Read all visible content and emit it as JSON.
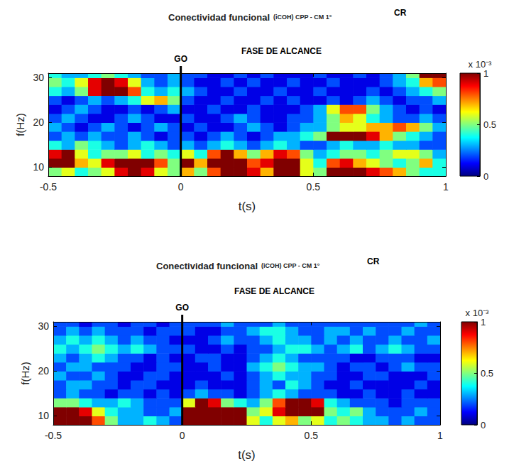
{
  "chart_data": [
    {
      "type": "heatmap",
      "title": "Conectividad funcional",
      "subtitle": "(iCOH) CPP - CM 1°",
      "annotations": [
        {
          "text": "GO",
          "x": 0
        },
        {
          "text": "FASE DE ALCANCE"
        },
        {
          "text": "CR"
        }
      ],
      "xlabel": "t(s)",
      "ylabel": "f(Hz)",
      "xlim": [
        -0.5,
        1
      ],
      "xticks": [
        -0.5,
        0,
        0.5,
        1
      ],
      "ylim": [
        8,
        31
      ],
      "yticks": [
        10,
        20,
        30
      ],
      "x_edges": [
        -0.5,
        -0.45,
        -0.4,
        -0.35,
        -0.3,
        -0.25,
        -0.2,
        -0.15,
        -0.1,
        -0.05,
        0,
        0.05,
        0.1,
        0.15,
        0.2,
        0.25,
        0.3,
        0.35,
        0.4,
        0.45,
        0.5,
        0.55,
        0.6,
        0.65,
        0.7,
        0.75,
        0.8,
        0.85,
        0.9,
        0.95,
        1.0
      ],
      "y_edges": [
        8,
        10,
        12,
        14,
        16,
        18,
        20,
        22,
        24,
        26,
        28,
        30,
        32
      ],
      "values": [
        [
          0.5,
          0.6,
          0.4,
          0.5,
          0.6,
          0.9,
          1,
          0.9,
          0.6,
          0.5,
          0.7,
          0.5,
          0.8,
          1,
          1,
          0.9,
          0.7,
          1,
          1,
          0.6,
          0.5,
          1,
          1,
          1,
          0.9,
          0.8,
          0.7,
          0.5,
          0.4,
          0.4
        ],
        [
          1,
          1,
          0.7,
          0.6,
          0.9,
          1,
          1,
          1,
          0.8,
          0.5,
          1,
          0.7,
          1,
          1,
          1,
          0.8,
          0.9,
          1,
          1,
          0.6,
          0.4,
          0.8,
          0.9,
          0.7,
          0.6,
          0.5,
          0.4,
          0.5,
          0.7,
          0.4
        ],
        [
          0.9,
          1,
          0.6,
          0.4,
          0.5,
          0.5,
          0.6,
          0.4,
          0.5,
          0.4,
          0.6,
          0.4,
          0.8,
          1,
          0.7,
          0.5,
          0.7,
          0.9,
          0.8,
          0.5,
          0.3,
          0.4,
          0.5,
          0.5,
          0.4,
          0.5,
          0.6,
          0.6,
          0.5,
          0.3
        ],
        [
          0.4,
          0.3,
          0.5,
          0.4,
          0.3,
          0.2,
          0.3,
          0.4,
          0.3,
          0.2,
          0.3,
          0.2,
          0.3,
          0.4,
          0.3,
          0.2,
          0.3,
          0.4,
          0.3,
          0.2,
          0.2,
          0.3,
          0.4,
          0.3,
          0.3,
          0.4,
          0.3,
          0.3,
          0.2,
          0.2
        ],
        [
          0.2,
          0.3,
          0.2,
          0.3,
          0.2,
          0.2,
          0.3,
          0.2,
          0.1,
          0.2,
          0.2,
          0.1,
          0.2,
          0.3,
          0.2,
          0.1,
          0.2,
          0.3,
          0.3,
          0.4,
          0.5,
          1,
          1,
          1,
          0.9,
          0.7,
          0.5,
          0.4,
          0.3,
          0.2
        ],
        [
          0.3,
          0.2,
          0.1,
          0.2,
          0.3,
          0.2,
          0.1,
          0.2,
          0.3,
          0.2,
          0.1,
          0.2,
          0.1,
          0.1,
          0.2,
          0.3,
          0.2,
          0.1,
          0.2,
          0.3,
          0.3,
          0.5,
          0.6,
          0.6,
          0.7,
          0.7,
          0.8,
          0.7,
          0.5,
          0.3
        ],
        [
          0.2,
          0.3,
          0.2,
          0.1,
          0.1,
          0.2,
          0.3,
          0.2,
          0.1,
          0.1,
          0.2,
          0.1,
          0.1,
          0.2,
          0.3,
          0.2,
          0.1,
          0.1,
          0.2,
          0.2,
          0.3,
          0.5,
          0.7,
          0.6,
          0.4,
          0.3,
          0.2,
          0.2,
          0.3,
          0.2
        ],
        [
          0.1,
          0.2,
          0.3,
          0.2,
          0.1,
          0.1,
          0.2,
          0.1,
          0.2,
          0.3,
          0.1,
          0.1,
          0.2,
          0.1,
          0.1,
          0.2,
          0.1,
          0.1,
          0.1,
          0.2,
          0.3,
          0.6,
          0.8,
          0.8,
          0.5,
          0.3,
          0.2,
          0.1,
          0.2,
          0.1
        ],
        [
          0.2,
          0.1,
          0.2,
          0.3,
          0.2,
          0.3,
          0.4,
          0.6,
          0.7,
          0.5,
          0.2,
          0.1,
          0.1,
          0.2,
          0.1,
          0.1,
          0.2,
          0.1,
          0.2,
          0.1,
          0.1,
          0.2,
          0.1,
          0.2,
          0.3,
          0.2,
          0.1,
          0.2,
          0.2,
          0.3
        ],
        [
          0.4,
          0.3,
          0.5,
          0.9,
          1,
          1,
          0.8,
          0.4,
          0.3,
          0.4,
          0.3,
          0.2,
          0.1,
          0.1,
          0.2,
          0.1,
          0.1,
          0.2,
          0.1,
          0.1,
          0.2,
          0.1,
          0.1,
          0.1,
          0.2,
          0.1,
          0.2,
          0.3,
          0.4,
          0.5
        ],
        [
          0.5,
          0.4,
          0.6,
          0.9,
          1,
          0.9,
          0.6,
          0.3,
          0.2,
          0.3,
          0.2,
          0.1,
          0.1,
          0.2,
          0.1,
          0.2,
          0.1,
          0.1,
          0.2,
          0.1,
          0.1,
          0.2,
          0.1,
          0.1,
          0.1,
          0.2,
          0.3,
          0.4,
          0.7,
          0.8
        ],
        [
          0.4,
          0.3,
          0.3,
          0.4,
          0.5,
          0.4,
          0.3,
          0.2,
          0.2,
          0.3,
          0.2,
          0.2,
          0.1,
          0.1,
          0.2,
          0.1,
          0.2,
          0.1,
          0.1,
          0.1,
          0.2,
          0.1,
          0.1,
          0.2,
          0.1,
          0.2,
          0.3,
          0.5,
          1,
          1
        ]
      ],
      "colorbar": {
        "range": [
          0,
          1
        ],
        "ticks": [
          0,
          0.5,
          1
        ],
        "label": "x 10⁻³"
      }
    },
    {
      "type": "heatmap",
      "title": "Conectividad funcional",
      "subtitle": "(iCOH) CPP - CM 1°",
      "annotations": [
        {
          "text": "GO",
          "x": 0
        },
        {
          "text": "FASE DE ALCANCE"
        },
        {
          "text": "CR"
        }
      ],
      "xlabel": "t(s)",
      "ylabel": "f(Hz)",
      "xlim": [
        -0.5,
        1
      ],
      "xticks": [
        -0.5,
        0,
        0.5,
        1
      ],
      "ylim": [
        8,
        31
      ],
      "yticks": [
        10,
        20,
        30
      ],
      "x_edges": [
        -0.5,
        -0.45,
        -0.4,
        -0.35,
        -0.3,
        -0.25,
        -0.2,
        -0.15,
        -0.1,
        -0.05,
        0,
        0.05,
        0.1,
        0.15,
        0.2,
        0.25,
        0.3,
        0.35,
        0.4,
        0.45,
        0.5,
        0.55,
        0.6,
        0.65,
        0.7,
        0.75,
        0.8,
        0.85,
        0.9,
        0.95,
        1.0
      ],
      "y_edges": [
        8,
        10,
        12,
        14,
        16,
        18,
        20,
        22,
        24,
        26,
        28,
        30,
        32
      ],
      "values": [
        [
          1,
          1,
          1,
          0.8,
          0.5,
          0.3,
          0.3,
          0.4,
          0.3,
          0.2,
          1,
          1,
          1,
          1,
          1,
          0.6,
          0.4,
          0.6,
          0.7,
          0.5,
          0.6,
          0.4,
          0.5,
          0.4,
          0.3,
          0.3,
          0.2,
          0.3,
          0.2,
          0.2
        ],
        [
          1,
          1,
          0.9,
          0.6,
          0.4,
          0.3,
          0.3,
          0.2,
          0.2,
          0.3,
          1,
          1,
          1,
          1,
          1,
          0.5,
          0.6,
          0.9,
          1,
          1,
          1,
          0.5,
          0.4,
          0.5,
          0.3,
          0.2,
          0.2,
          0.2,
          0.3,
          0.2
        ],
        [
          0.5,
          0.5,
          0.4,
          0.3,
          0.3,
          0.4,
          0.3,
          0.2,
          0.2,
          0.2,
          0.6,
          1,
          0.9,
          0.5,
          0.4,
          0.3,
          0.5,
          0.8,
          1,
          1,
          0.9,
          0.4,
          0.3,
          0.2,
          0.2,
          0.2,
          0.1,
          0.2,
          0.2,
          0.2
        ],
        [
          0.2,
          0.3,
          0.2,
          0.2,
          0.1,
          0.2,
          0.2,
          0.1,
          0.2,
          0.1,
          0.2,
          0.3,
          0.2,
          0.2,
          0.1,
          0.2,
          0.3,
          0.4,
          0.3,
          0.2,
          0.2,
          0.2,
          0.1,
          0.1,
          0.2,
          0.1,
          0.1,
          0.2,
          0.1,
          0.1
        ],
        [
          0.2,
          0.3,
          0.3,
          0.2,
          0.2,
          0.1,
          0.2,
          0.2,
          0.1,
          0.1,
          0.1,
          0.2,
          0.1,
          0.1,
          0.1,
          0.2,
          0.3,
          0.2,
          0.4,
          0.3,
          0.2,
          0.1,
          0.1,
          0.2,
          0.1,
          0.1,
          0.1,
          0.1,
          0.2,
          0.1
        ],
        [
          0.3,
          0.2,
          0.2,
          0.3,
          0.2,
          0.1,
          0.1,
          0.2,
          0.2,
          0.1,
          0.1,
          0.1,
          0.1,
          0.2,
          0.1,
          0.2,
          0.3,
          0.4,
          0.3,
          0.3,
          0.2,
          0.2,
          0.1,
          0.1,
          0.2,
          0.2,
          0.1,
          0.1,
          0.1,
          0.2
        ],
        [
          0.2,
          0.3,
          0.3,
          0.2,
          0.2,
          0.2,
          0.1,
          0.1,
          0.2,
          0.2,
          0.1,
          0.1,
          0.2,
          0.1,
          0.1,
          0.3,
          0.4,
          0.5,
          0.4,
          0.3,
          0.3,
          0.2,
          0.1,
          0.2,
          0.2,
          0.1,
          0.2,
          0.3,
          0.2,
          0.2
        ],
        [
          0.3,
          0.2,
          0.3,
          0.4,
          0.3,
          0.2,
          0.2,
          0.1,
          0.2,
          0.1,
          0.1,
          0.2,
          0.2,
          0.1,
          0.1,
          0.2,
          0.3,
          0.4,
          0.3,
          0.2,
          0.2,
          0.2,
          0.2,
          0.1,
          0.1,
          0.2,
          0.2,
          0.2,
          0.1,
          0.1
        ],
        [
          0.4,
          0.3,
          0.4,
          0.5,
          0.4,
          0.3,
          0.4,
          0.3,
          0.2,
          0.2,
          0.2,
          0.1,
          0.1,
          0.2,
          0.1,
          0.2,
          0.2,
          0.3,
          0.4,
          0.4,
          0.3,
          0.2,
          0.3,
          0.4,
          0.2,
          0.3,
          0.4,
          0.3,
          0.2,
          0.2
        ],
        [
          0.3,
          0.4,
          0.3,
          0.4,
          0.3,
          0.2,
          0.3,
          0.2,
          0.2,
          0.1,
          0.1,
          0.1,
          0.2,
          0.3,
          0.2,
          0.2,
          0.3,
          0.4,
          0.3,
          0.3,
          0.2,
          0.3,
          0.2,
          0.3,
          0.2,
          0.2,
          0.3,
          0.2,
          0.2,
          0.3
        ],
        [
          0.2,
          0.3,
          0.2,
          0.3,
          0.2,
          0.2,
          0.2,
          0.1,
          0.2,
          0.2,
          0.2,
          0.1,
          0.1,
          0.2,
          0.2,
          0.3,
          0.4,
          0.4,
          0.3,
          0.2,
          0.2,
          0.3,
          0.3,
          0.2,
          0.3,
          0.2,
          0.2,
          0.3,
          0.2,
          0.2
        ],
        [
          0.2,
          0.2,
          0.1,
          0.2,
          0.2,
          0.1,
          0.2,
          0.2,
          0.1,
          0.2,
          0.2,
          0.2,
          0.2,
          0.3,
          0.2,
          0.2,
          0.2,
          0.3,
          0.2,
          0.2,
          0.2,
          0.2,
          0.2,
          0.2,
          0.2,
          0.2,
          0.2,
          0.2,
          0.3,
          0.2
        ]
      ],
      "colorbar": {
        "range": [
          0,
          1
        ],
        "ticks": [
          0,
          0.5,
          1
        ],
        "label": "x 10⁻³"
      }
    }
  ]
}
